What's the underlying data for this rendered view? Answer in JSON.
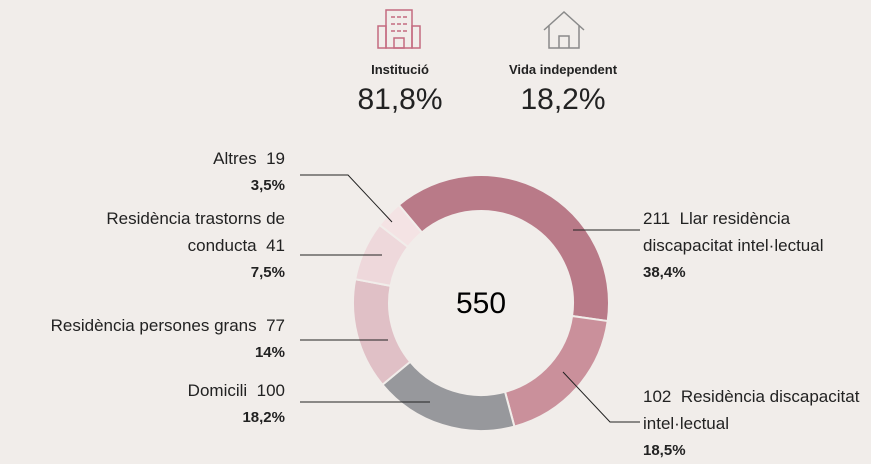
{
  "chart_data": {
    "type": "donut",
    "categories": [
      "Llar residència discapacitat intel·lectual",
      "Residència discapacitat intel·lectual",
      "Domicili",
      "Residència persones grans",
      "Residència trastorns de conducta",
      "Altres"
    ],
    "values": [
      211,
      102,
      100,
      77,
      41,
      19
    ],
    "percentages": [
      38.4,
      18.5,
      18.2,
      14,
      7.5,
      3.5
    ],
    "percentage_labels": [
      "38,4%",
      "18,5%",
      "18,2%",
      "14%",
      "7,5%",
      "3,5%"
    ],
    "colors": [
      "#b97a88",
      "#ca909b",
      "#97989c",
      "#e0c0c6",
      "#eed8db",
      "#f4e3e4"
    ],
    "total": 550,
    "summary": [
      {
        "name": "Institució",
        "value": 81.8,
        "label": "81,8%",
        "color": "#c46b80"
      },
      {
        "name": "Vida independent",
        "value": 18.2,
        "label": "18,2%",
        "color": "#8a8a8a"
      }
    ]
  }
}
